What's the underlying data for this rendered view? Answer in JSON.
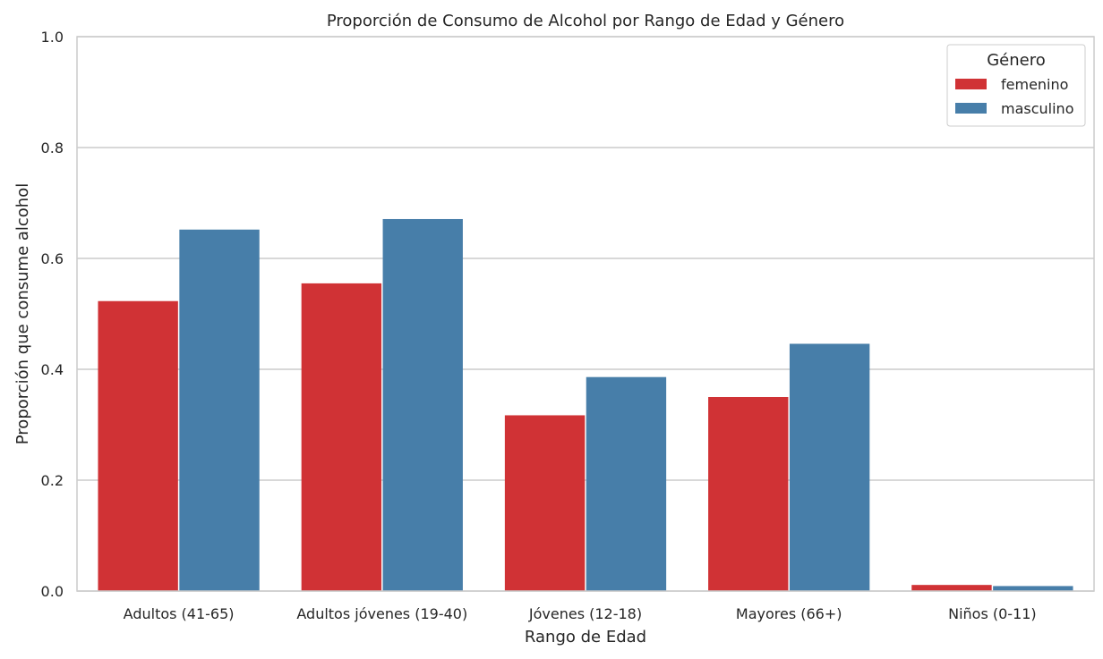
{
  "chart_data": {
    "type": "bar",
    "title": "Proporción de Consumo de Alcohol por Rango de Edad y Género",
    "xlabel": "Rango de Edad",
    "ylabel": "Proporción que consume alcohol",
    "categories": [
      "Adultos (41-65)",
      "Adultos jóvenes (19-40)",
      "Jóvenes (12-18)",
      "Mayores (66+)",
      "Niños (0-11)"
    ],
    "series": [
      {
        "name": "femenino",
        "values": [
          0.523,
          0.555,
          0.317,
          0.35,
          0.011
        ],
        "color": "#d03235"
      },
      {
        "name": "masculino",
        "values": [
          0.652,
          0.671,
          0.386,
          0.446,
          0.009
        ],
        "color": "#477ea9"
      }
    ],
    "ylim": [
      0,
      1.0
    ],
    "yticks": [
      "0.0",
      "0.2",
      "0.4",
      "0.6",
      "0.8",
      "1.0"
    ],
    "grid": "horizontal",
    "legend": {
      "title": "Género",
      "placement": "top-right"
    }
  }
}
